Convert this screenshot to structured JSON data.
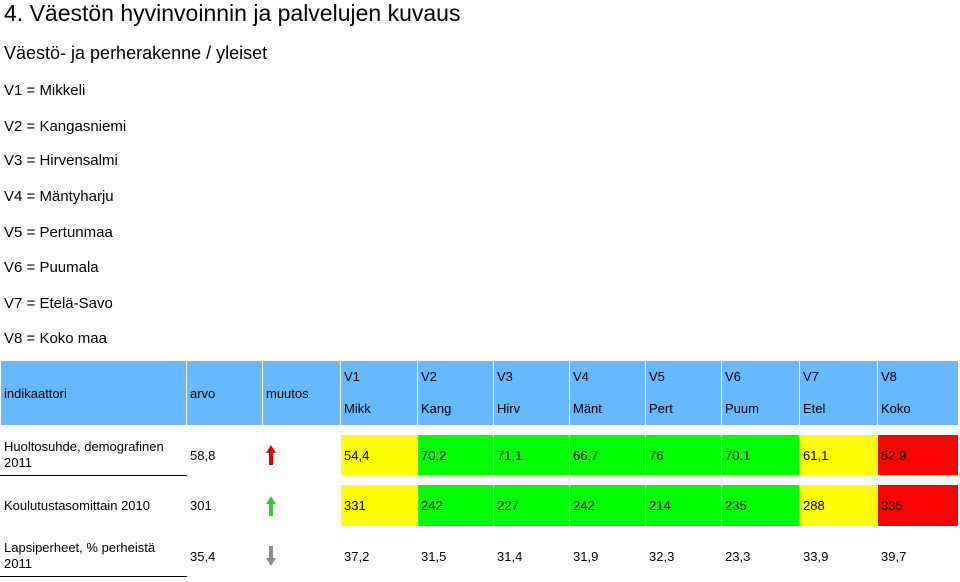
{
  "title": "4. Väestön hyvinvoinnin ja palvelujen kuvaus",
  "subtitle": "Väestö- ja perherakenne / yleiset",
  "legend": [
    "V1 = Mikkeli",
    "V2 = Kangasniemi",
    "V3 = Hirvensalmi",
    "V4 = Mäntyharju",
    "V5 = Pertunmaa",
    "V6 = Puumala",
    "V7 = Etelä-Savo",
    "V8 = Koko maa"
  ],
  "table": {
    "header": {
      "indicator": "indikaattori",
      "value": "arvo",
      "change": "muutos",
      "columns": [
        {
          "code": "V1",
          "short": "Mikk"
        },
        {
          "code": "V2",
          "short": "Kang"
        },
        {
          "code": "V3",
          "short": "Hirv"
        },
        {
          "code": "V4",
          "short": "Mänt"
        },
        {
          "code": "V5",
          "short": "Pert"
        },
        {
          "code": "V6",
          "short": "Puum"
        },
        {
          "code": "V7",
          "short": "Etel"
        },
        {
          "code": "V8",
          "short": "Koko"
        }
      ]
    },
    "rows": [
      {
        "indicator": "Huoltosuhde, demografinen 2011",
        "value": "58,8",
        "change_icon": "arrow-up-red-icon",
        "cells": [
          "54,4",
          "70,2",
          "71,1",
          "66,7",
          "76",
          "70,1",
          "61,1",
          "52,9"
        ],
        "colors": [
          "yellow",
          "green",
          "green",
          "green",
          "green",
          "green",
          "yellow",
          "red"
        ]
      },
      {
        "indicator": "Koulutustasomittain 2010",
        "value": "301",
        "change_icon": "arrow-up-green-icon",
        "cells": [
          "331",
          "242",
          "227",
          "242",
          "214",
          "235",
          "288",
          "335"
        ],
        "colors": [
          "yellow",
          "green",
          "green",
          "green",
          "green",
          "green",
          "yellow",
          "red"
        ]
      },
      {
        "indicator": "Lapsiperheet, % perheistä 2011",
        "value": "35,4",
        "change_icon": "arrow-down-gray-icon",
        "cells": [
          "37,2",
          "31,5",
          "31,4",
          "31,9",
          "32,3",
          "23,3",
          "33,9",
          "39,7"
        ],
        "colors": [
          "white",
          "white",
          "white",
          "white",
          "white",
          "white",
          "white",
          "white"
        ]
      }
    ],
    "palette": {
      "header": "#66b8ff",
      "yellow": "#ffff00",
      "green": "#00ff00",
      "red": "#ff0000",
      "arrow_red": "#e00000",
      "arrow_green": "#3cc83c",
      "arrow_gray": "#8c8c8c"
    }
  }
}
